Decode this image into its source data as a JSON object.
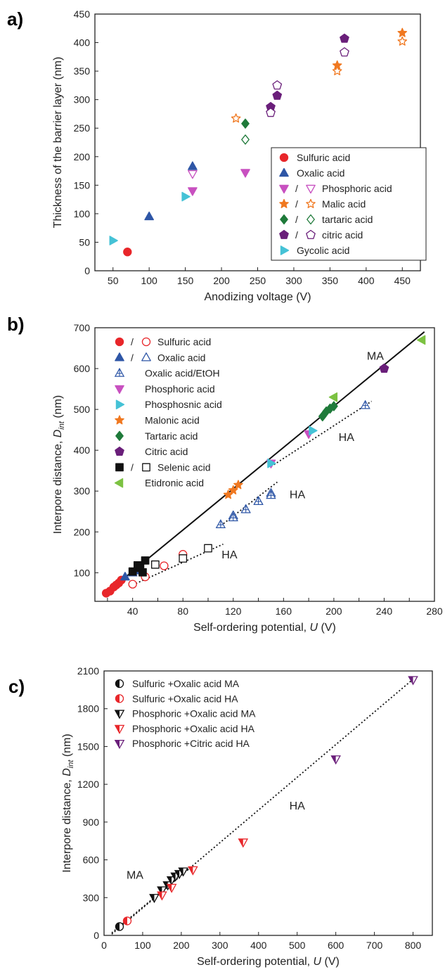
{
  "chart_data": [
    {
      "panel_label": "a)",
      "type": "scatter",
      "xlabel": "Anodizing voltage (V)",
      "ylabel": "Thickness of the barrier layer (nm)",
      "xlim": [
        25,
        475
      ],
      "ylim": [
        0,
        450
      ],
      "xticks": [
        50,
        100,
        150,
        200,
        250,
        300,
        350,
        400,
        450
      ],
      "yticks": [
        0,
        50,
        100,
        150,
        200,
        250,
        300,
        350,
        400,
        450
      ],
      "legend_position": "lower-right",
      "legend": [
        {
          "label": "Sulfuric acid",
          "color": "#e8262a",
          "marker": "circle",
          "filled": true,
          "open": false
        },
        {
          "label": "Oxalic acid",
          "color": "#2e56a6",
          "marker": "triangle-up",
          "filled": true,
          "open": false
        },
        {
          "label": "Phosphoric acid",
          "color": "#c850c0",
          "marker": "triangle-down",
          "filled": true,
          "open": true,
          "sep": "/"
        },
        {
          "label": "Malic acid",
          "color": "#f07820",
          "marker": "star",
          "filled": true,
          "open": true,
          "sep": "/"
        },
        {
          "label": "tartaric acid",
          "color": "#1f7a3a",
          "marker": "diamond",
          "filled": true,
          "open": true,
          "sep": "/"
        },
        {
          "label": "citric acid",
          "color": "#6a1f7a",
          "marker": "pentagon",
          "filled": true,
          "open": true,
          "sep": "/"
        },
        {
          "label": "Gycolic acid",
          "color": "#45c2d6",
          "marker": "triangle-right",
          "filled": true,
          "open": false
        }
      ],
      "series": [
        {
          "name": "Sulfuric acid",
          "color": "#e8262a",
          "marker": "circle",
          "filled": true,
          "x": [
            70
          ],
          "y": [
            33
          ]
        },
        {
          "name": "Oxalic acid",
          "color": "#2e56a6",
          "marker": "triangle-up",
          "filled": true,
          "x": [
            100,
            160
          ],
          "y": [
            95,
            183
          ]
        },
        {
          "name": "Phosphoric acid",
          "color": "#c850c0",
          "marker": "triangle-down",
          "filled": true,
          "x": [
            160,
            233
          ],
          "y": [
            140,
            172
          ]
        },
        {
          "name": "Phosphoric acid",
          "color": "#c850c0",
          "marker": "triangle-down",
          "filled": false,
          "x": [
            160
          ],
          "y": [
            170
          ]
        },
        {
          "name": "Malic acid",
          "color": "#f07820",
          "marker": "star",
          "filled": true,
          "x": [
            360,
            450
          ],
          "y": [
            360,
            417
          ]
        },
        {
          "name": "Malic acid",
          "color": "#f07820",
          "marker": "star",
          "filled": false,
          "x": [
            220,
            360,
            450
          ],
          "y": [
            267,
            350,
            402
          ]
        },
        {
          "name": "tartaric acid",
          "color": "#1f7a3a",
          "marker": "diamond",
          "filled": true,
          "x": [
            233
          ],
          "y": [
            258
          ]
        },
        {
          "name": "tartaric acid",
          "color": "#1f7a3a",
          "marker": "diamond",
          "filled": false,
          "x": [
            233
          ],
          "y": [
            230
          ]
        },
        {
          "name": "citric acid",
          "color": "#6a1f7a",
          "marker": "pentagon",
          "filled": true,
          "x": [
            268,
            277,
            370
          ],
          "y": [
            287,
            307,
            407
          ]
        },
        {
          "name": "citric acid",
          "color": "#6a1f7a",
          "marker": "pentagon",
          "filled": false,
          "x": [
            268,
            277,
            370
          ],
          "y": [
            277,
            325,
            383
          ]
        },
        {
          "name": "Gycolic acid",
          "color": "#45c2d6",
          "marker": "triangle-right",
          "filled": true,
          "x": [
            50,
            150
          ],
          "y": [
            53,
            130
          ]
        }
      ],
      "annotations": []
    },
    {
      "panel_label": "b)",
      "type": "scatter",
      "xlabel": "Self-ordering potential, U (V)",
      "ylabel": "Interpore distance, D_int (nm)",
      "xlim": [
        10,
        280
      ],
      "ylim": [
        30,
        700
      ],
      "xticks": [
        20,
        40,
        60,
        80,
        100,
        120,
        140,
        160,
        180,
        200,
        220,
        240,
        260,
        280
      ],
      "xtick_labels": [
        "",
        "40",
        "",
        "80",
        "",
        "120",
        "",
        "160",
        "",
        "200",
        "",
        "240",
        "",
        "280"
      ],
      "yticks": [
        100,
        200,
        300,
        400,
        500,
        600,
        700
      ],
      "legend_position": "upper-left",
      "legend": [
        {
          "label": "Sulfuric acid",
          "color": "#e8262a",
          "marker": "circle",
          "filled": true,
          "open": true,
          "sep": "/"
        },
        {
          "label": "Oxalic acid",
          "color": "#2e56a6",
          "marker": "triangle-up",
          "filled": true,
          "open": true,
          "sep": "/"
        },
        {
          "label": "Oxalic acid/EtOH",
          "color": "#2e56a6",
          "marker": "triangle-cross",
          "filled": false,
          "open": false
        },
        {
          "label": "Phosphoric acid",
          "color": "#c850c0",
          "marker": "triangle-down",
          "filled": true,
          "open": false
        },
        {
          "label": "Phosphosnic acid",
          "color": "#45c2d6",
          "marker": "triangle-right",
          "filled": true,
          "open": false
        },
        {
          "label": "Malonic acid",
          "color": "#f07820",
          "marker": "star",
          "filled": true,
          "open": false
        },
        {
          "label": "Tartaric acid",
          "color": "#1f7a3a",
          "marker": "diamond",
          "filled": true,
          "open": false
        },
        {
          "label": "Citric acid",
          "color": "#6a1f7a",
          "marker": "pentagon",
          "filled": true,
          "open": false
        },
        {
          "label": "Selenic acid",
          "color": "#111111",
          "marker": "square",
          "filled": true,
          "open": true,
          "sep": "/"
        },
        {
          "label": "Etidronic acid",
          "color": "#7cc242",
          "marker": "triangle-left",
          "filled": true,
          "open": false
        }
      ],
      "lines": [
        {
          "style": "solid",
          "x": [
            18,
            272
          ],
          "y": [
            48,
            690
          ]
        },
        {
          "style": "dotted",
          "x": [
            40,
            112
          ],
          "y": [
            70,
            170
          ]
        },
        {
          "style": "dotted",
          "x": [
            110,
            155
          ],
          "y": [
            215,
            322
          ]
        },
        {
          "style": "dotted",
          "x": [
            150,
            230
          ],
          "y": [
            360,
            520
          ]
        }
      ],
      "series": [
        {
          "name": "Sulfuric acid",
          "color": "#e8262a",
          "marker": "circle",
          "filled": true,
          "x": [
            19,
            22,
            25,
            27,
            29,
            31
          ],
          "y": [
            50,
            55,
            65,
            70,
            75,
            82
          ]
        },
        {
          "name": "Sulfuric acid",
          "color": "#e8262a",
          "marker": "circle",
          "filled": false,
          "x": [
            40,
            50,
            65,
            80
          ],
          "y": [
            72,
            90,
            117,
            145
          ]
        },
        {
          "name": "Oxalic acid",
          "color": "#2e56a6",
          "marker": "triangle-up",
          "filled": true,
          "x": [
            34,
            40,
            42
          ],
          "y": [
            90,
            100,
            105
          ]
        },
        {
          "name": "Oxalic acid",
          "color": "#2e56a6",
          "marker": "triangle-up",
          "filled": false,
          "x": [
            120,
            130,
            140,
            150
          ],
          "y": [
            240,
            255,
            275,
            295
          ]
        },
        {
          "name": "Oxalic acid/EtOH",
          "color": "#2e56a6",
          "marker": "triangle-cross",
          "filled": false,
          "x": [
            110,
            120,
            130,
            140,
            150,
            225
          ],
          "y": [
            218,
            235,
            255,
            275,
            290,
            510
          ]
        },
        {
          "name": "Phosphoric acid",
          "color": "#c850c0",
          "marker": "triangle-down",
          "filled": true,
          "x": [
            150,
            180
          ],
          "y": [
            368,
            440
          ]
        },
        {
          "name": "Phosphosnic acid",
          "color": "#45c2d6",
          "marker": "triangle-right",
          "filled": true,
          "x": [
            150,
            183
          ],
          "y": [
            368,
            448
          ]
        },
        {
          "name": "Malonic acid",
          "color": "#f07820",
          "marker": "star",
          "filled": true,
          "x": [
            116,
            120,
            124
          ],
          "y": [
            291,
            302,
            315
          ]
        },
        {
          "name": "Tartaric acid",
          "color": "#1f7a3a",
          "marker": "diamond",
          "filled": true,
          "x": [
            191,
            194,
            197,
            200
          ],
          "y": [
            483,
            495,
            502,
            508
          ]
        },
        {
          "name": "Citric acid",
          "color": "#6a1f7a",
          "marker": "pentagon",
          "filled": true,
          "x": [
            240
          ],
          "y": [
            600
          ]
        },
        {
          "name": "Selenic acid",
          "color": "#111111",
          "marker": "square",
          "filled": true,
          "x": [
            40,
            44,
            46,
            48,
            50
          ],
          "y": [
            103,
            118,
            112,
            101,
            130
          ]
        },
        {
          "name": "Selenic acid",
          "color": "#111111",
          "marker": "square",
          "filled": false,
          "x": [
            58,
            80,
            100
          ],
          "y": [
            120,
            135,
            160
          ]
        },
        {
          "name": "Etidronic acid",
          "color": "#7cc242",
          "marker": "triangle-left",
          "filled": true,
          "x": [
            200,
            270
          ],
          "y": [
            530,
            670
          ]
        }
      ],
      "annotations": [
        {
          "text": "MA",
          "x": 233,
          "y": 622
        },
        {
          "text": "HA",
          "x": 210,
          "y": 423
        },
        {
          "text": "HA",
          "x": 171,
          "y": 282
        },
        {
          "text": "HA",
          "x": 117,
          "y": 135
        }
      ]
    },
    {
      "panel_label": "c)",
      "type": "scatter",
      "xlabel": "Self-ordering potential, U (V)",
      "ylabel": "Interpore distance, D_int (nm)",
      "xlim": [
        0,
        850
      ],
      "ylim": [
        0,
        2100
      ],
      "xticks": [
        0,
        100,
        200,
        300,
        400,
        500,
        600,
        700,
        800
      ],
      "yticks": [
        0,
        300,
        600,
        900,
        1200,
        1500,
        1800,
        2100
      ],
      "legend_position": "upper-left",
      "legend": [
        {
          "label": "Sulfuric +Oxalic acid MA",
          "color": "#111111",
          "marker": "half-circle",
          "filled": true,
          "open": false
        },
        {
          "label": "Sulfuric +Oxalic acid HA",
          "color": "#e8262a",
          "marker": "half-circle",
          "filled": true,
          "open": false
        },
        {
          "label": "Phosphoric +Oxalic acid MA",
          "color": "#111111",
          "marker": "half-triangle-down",
          "filled": true,
          "open": false
        },
        {
          "label": "Phosphoric +Oxalic acid HA",
          "color": "#e8262a",
          "marker": "half-triangle-down",
          "filled": true,
          "open": false
        },
        {
          "label": "Phosphoric +Citric acid HA",
          "color": "#6a1f7a",
          "marker": "half-triangle-down",
          "filled": true,
          "open": false
        }
      ],
      "lines": [
        {
          "style": "dotted",
          "x": [
            20,
            810
          ],
          "y": [
            10,
            2060
          ]
        },
        {
          "style": "dotted",
          "x": [
            20,
            220
          ],
          "y": [
            20,
            530
          ]
        }
      ],
      "series": [
        {
          "name": "Sulfuric +Oxalic acid MA",
          "color": "#111111",
          "marker": "half-circle",
          "filled": true,
          "x": [
            40
          ],
          "y": [
            70
          ]
        },
        {
          "name": "Sulfuric +Oxalic acid HA",
          "color": "#e8262a",
          "marker": "half-circle",
          "filled": true,
          "x": [
            60
          ],
          "y": [
            115
          ]
        },
        {
          "name": "Phosphoric +Oxalic acid MA",
          "color": "#111111",
          "marker": "half-triangle-down",
          "filled": true,
          "x": [
            130,
            150,
            165,
            175,
            185,
            195,
            205
          ],
          "y": [
            300,
            360,
            400,
            440,
            470,
            490,
            510
          ]
        },
        {
          "name": "Phosphoric +Oxalic acid HA",
          "color": "#e8262a",
          "marker": "half-triangle-down",
          "filled": true,
          "x": [
            150,
            175,
            230,
            360
          ],
          "y": [
            320,
            380,
            520,
            740
          ]
        },
        {
          "name": "Phosphoric +Citric acid HA",
          "color": "#6a1f7a",
          "marker": "half-triangle-down",
          "filled": true,
          "x": [
            600,
            800
          ],
          "y": [
            1400,
            2030
          ]
        }
      ],
      "annotations": [
        {
          "text": "MA",
          "x": 80,
          "y": 450
        },
        {
          "text": "HA",
          "x": 500,
          "y": 1000
        }
      ]
    }
  ]
}
